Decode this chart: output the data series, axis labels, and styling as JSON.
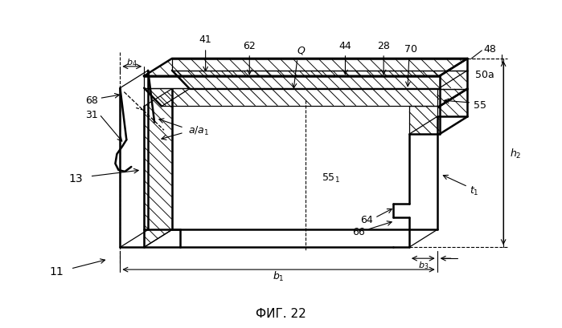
{
  "title": "ФИГ. 22",
  "title_fontsize": 11,
  "background": "#ffffff",
  "fig_width": 6.99,
  "fig_height": 4.1,
  "dpi": 100,
  "lw_main": 1.8,
  "lw_thin": 0.9,
  "lw_dim": 0.8
}
